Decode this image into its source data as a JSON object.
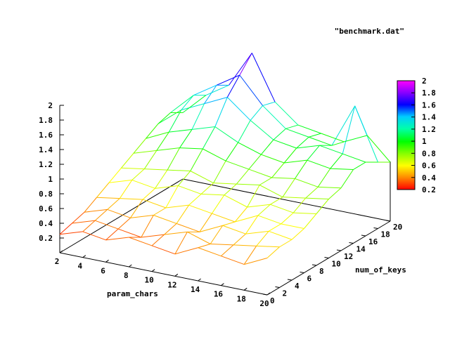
{
  "chart_data": {
    "type": "surface",
    "series_name": "\"benchmark.dat\"",
    "xlabel": "param_chars",
    "ylabel": "num_of_keys",
    "x_ticks": [
      "2",
      "4",
      "6",
      "8",
      "10",
      "12",
      "14",
      "16",
      "18",
      "20"
    ],
    "y_ticks": [
      "0",
      "2",
      "4",
      "6",
      "8",
      "10",
      "12",
      "14",
      "16",
      "18",
      "20"
    ],
    "z_ticks": [
      "0.2",
      "0.4",
      "0.6",
      "0.8",
      "1",
      "1.2",
      "1.4",
      "1.6",
      "1.8",
      "2"
    ],
    "colorbar_ticks": [
      "0.2",
      "0.4",
      "0.6",
      "0.8",
      "1",
      "1.2",
      "1.4",
      "1.6",
      "1.8",
      "2"
    ],
    "xlim": [
      2,
      20
    ],
    "ylim": [
      0,
      20
    ],
    "zlim": [
      0.0,
      2.0
    ],
    "cblim": [
      0.2,
      2.0
    ],
    "palette": [
      "#ff0000",
      "#ff8800",
      "#ffff00",
      "#88ff00",
      "#00ff00",
      "#00ffaa",
      "#00ccff",
      "#0000ff",
      "#8800ff",
      "#ff00ff"
    ],
    "grid_x": [
      2,
      4,
      6,
      8,
      10,
      12,
      14,
      16,
      18,
      20
    ],
    "grid_y": [
      0,
      2,
      4,
      6,
      8,
      10,
      12,
      14,
      16,
      18,
      20
    ],
    "z": [
      [
        0.25,
        0.35,
        0.3,
        0.4,
        0.35,
        0.3,
        0.45,
        0.4,
        0.35,
        0.5
      ],
      [
        0.3,
        0.4,
        0.35,
        0.3,
        0.4,
        0.5,
        0.4,
        0.45,
        0.5,
        0.55
      ],
      [
        0.35,
        0.45,
        0.4,
        0.5,
        0.45,
        0.4,
        0.55,
        0.5,
        0.6,
        0.55
      ],
      [
        0.45,
        0.5,
        0.55,
        0.5,
        0.6,
        0.55,
        0.5,
        0.65,
        0.6,
        0.6
      ],
      [
        0.55,
        0.65,
        0.6,
        0.7,
        0.65,
        0.7,
        0.6,
        0.7,
        0.65,
        0.7
      ],
      [
        0.65,
        0.7,
        0.75,
        0.8,
        0.7,
        0.75,
        0.8,
        0.7,
        0.75,
        0.8
      ],
      [
        0.75,
        0.85,
        0.95,
        1.0,
        0.9,
        0.85,
        0.8,
        0.85,
        0.8,
        0.85
      ],
      [
        0.85,
        1.0,
        1.1,
        1.2,
        1.05,
        0.95,
        0.9,
        1.0,
        0.95,
        1.0
      ],
      [
        0.95,
        1.2,
        1.35,
        1.5,
        1.25,
        1.05,
        1.0,
        1.1,
        1.05,
        1.0
      ],
      [
        1.0,
        1.3,
        1.5,
        1.7,
        1.35,
        1.1,
        1.05,
        1.0,
        1.6,
        0.9
      ],
      [
        0.9,
        1.2,
        1.4,
        1.9,
        1.3,
        1.05,
        1.0,
        0.95,
        1.1,
        0.8
      ]
    ]
  }
}
